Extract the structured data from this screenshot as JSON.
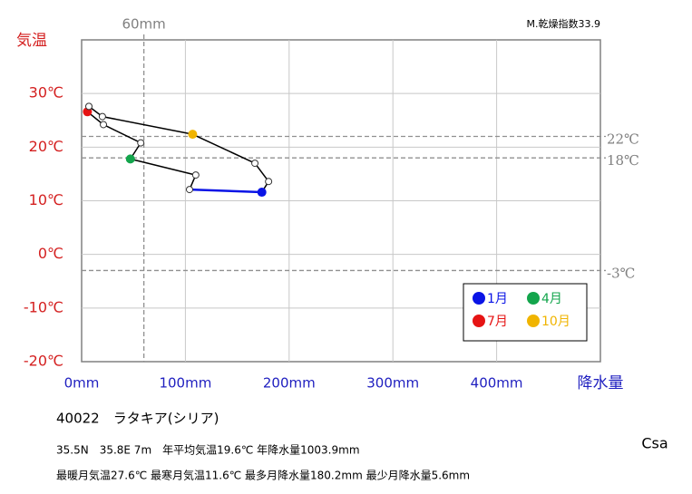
{
  "chart_data": {
    "type": "line",
    "y_label": "気温",
    "x_label": "降水量",
    "index_label": "M.乾燥指数33.9",
    "station": "40022　ラタキア(シリア)",
    "info_lines": [
      "35.5N　35.8E 7m　年平均気温19.6℃ 年降水量1003.9mm",
      "最暖月気温27.6℃ 最寒月気温11.6℃ 最多月降水量180.2mm 最少月降水量5.6mm"
    ],
    "climate_class": "Csa",
    "x": [
      173.7,
      104,
      110,
      47,
      57,
      21,
      5.6,
      7,
      20,
      107,
      167,
      180.2
    ],
    "values": [
      11.6,
      12.1,
      14.8,
      17.8,
      20.8,
      24.2,
      26.6,
      27.6,
      25.7,
      22.4,
      17,
      13.6
    ],
    "point_colors": [
      "#0a14e6",
      null,
      null,
      "#13a54c",
      null,
      null,
      "#e61414",
      null,
      null,
      "#f0b400",
      null,
      null
    ],
    "legend_names": [
      "1月",
      null,
      null,
      "4月",
      null,
      null,
      "7月",
      null,
      null,
      "10月",
      null,
      null
    ],
    "segment_colors": [
      "#0a14e6",
      "#000000",
      "#000000",
      "#000000",
      "#000000",
      "#000000",
      "#e61414",
      "#000000",
      "#000000",
      "#000000",
      "#000000",
      "#000000"
    ],
    "xlim": [
      0,
      500
    ],
    "ylim": [
      -20,
      40
    ],
    "xticks": [
      {
        "value": 0,
        "label": "0mm"
      },
      {
        "value": 100,
        "label": "100mm"
      },
      {
        "value": 200,
        "label": "200mm"
      },
      {
        "value": 300,
        "label": "300mm"
      },
      {
        "value": 400,
        "label": "400mm"
      }
    ],
    "yticks": [
      {
        "value": -20,
        "label": "-20℃"
      },
      {
        "value": -10,
        "label": "-10℃"
      },
      {
        "value": 0,
        "label": "0℃"
      },
      {
        "value": 10,
        "label": "10℃"
      },
      {
        "value": 20,
        "label": "20℃"
      },
      {
        "value": 30,
        "label": "30℃"
      }
    ],
    "ref_lines_y": [
      {
        "value": 22,
        "label": "22℃"
      },
      {
        "value": 18,
        "label": "18℃"
      },
      {
        "value": -3,
        "label": "-3℃"
      }
    ],
    "ref_lines_x": [
      {
        "value": 60,
        "label": "60mm"
      }
    ],
    "grid": true
  }
}
